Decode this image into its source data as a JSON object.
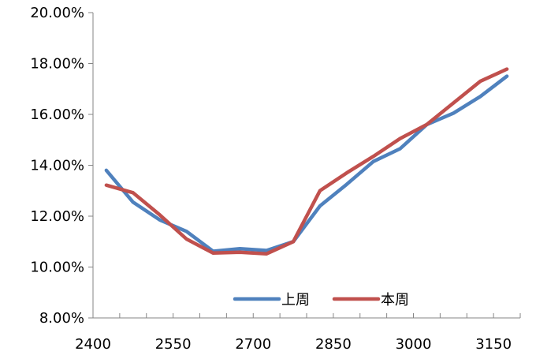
{
  "chart_data": {
    "type": "line",
    "x": [
      2425,
      2475,
      2525,
      2575,
      2625,
      2675,
      2725,
      2775,
      2825,
      2875,
      2925,
      2975,
      3025,
      3075,
      3125,
      3175
    ],
    "series": [
      {
        "name": "上周",
        "color": "#4F81BD",
        "values": [
          13.8,
          12.55,
          11.85,
          11.4,
          10.62,
          10.72,
          10.65,
          11.0,
          12.4,
          13.25,
          14.15,
          14.65,
          15.6,
          16.05,
          16.7,
          17.5
        ]
      },
      {
        "name": "本周",
        "color": "#C0504D",
        "values": [
          13.22,
          12.92,
          12.05,
          11.1,
          10.55,
          10.58,
          10.52,
          11.0,
          13.0,
          13.7,
          14.35,
          15.05,
          15.6,
          16.45,
          17.3,
          17.78
        ]
      }
    ],
    "xlim": [
      2400,
      3200
    ],
    "ylim": [
      8,
      20
    ],
    "x_ticks": [
      2400,
      2550,
      2700,
      2850,
      3000,
      3150
    ],
    "y_ticks": [
      8,
      10,
      12,
      14,
      16,
      18,
      20
    ],
    "x_tick_labels": [
      "2400",
      "2550",
      "2700",
      "2850",
      "3000",
      "3150"
    ],
    "y_tick_labels": [
      "8.00%",
      "10.00%",
      "12.00%",
      "14.00%",
      "16.00%",
      "18.00%",
      "20.00%"
    ],
    "grid": false,
    "legend_position": "bottom-right inside"
  }
}
